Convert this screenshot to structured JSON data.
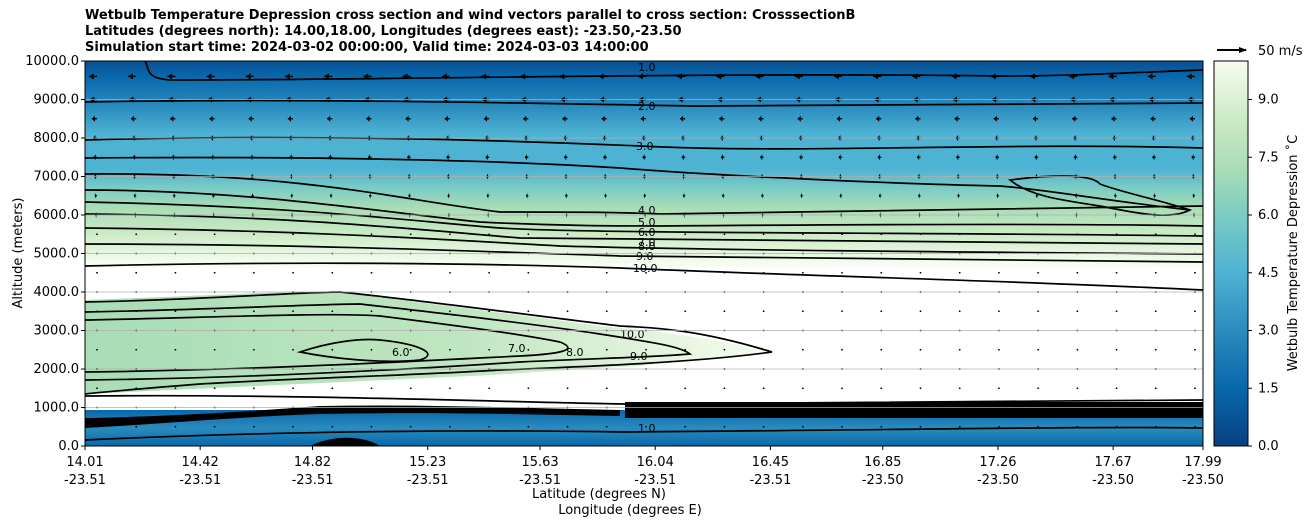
{
  "title": {
    "line1": "Wetbulb Temperature Depression cross section and wind vectors parallel to cross section: CrosssectionB",
    "line2": "Latitudes (degrees north): 14.00,18.00, Longitudes (degrees east): -23.50,-23.50",
    "line3": "Simulation start time: 2024-03-02 00:00:00, Valid time: 2024-03-03 14:00:00"
  },
  "chart_data": {
    "type": "heatmap",
    "subtype": "cross-section filled contour with contour lines and wind vectors",
    "ylabel": "Altitude (meters)",
    "xlabel_lat": "Latitude (degrees N)",
    "xlabel_lon": "Longitude (degrees E)",
    "ylim": [
      0,
      10000
    ],
    "yticks": [
      "0.0",
      "1000.0",
      "2000.0",
      "3000.0",
      "4000.0",
      "5000.0",
      "6000.0",
      "7000.0",
      "8000.0",
      "9000.0",
      "10000.0"
    ],
    "xlim": [
      14.01,
      17.99
    ],
    "xticks": [
      {
        "lat": "14.01",
        "lon": "-23.51"
      },
      {
        "lat": "14.42",
        "lon": "-23.51"
      },
      {
        "lat": "14.82",
        "lon": "-23.51"
      },
      {
        "lat": "15.23",
        "lon": "-23.51"
      },
      {
        "lat": "15.63",
        "lon": "-23.51"
      },
      {
        "lat": "16.04",
        "lon": "-23.51"
      },
      {
        "lat": "16.45",
        "lon": "-23.51"
      },
      {
        "lat": "16.85",
        "lon": "-23.50"
      },
      {
        "lat": "17.26",
        "lon": "-23.50"
      },
      {
        "lat": "17.67",
        "lon": "-23.50"
      },
      {
        "lat": "17.99",
        "lon": "-23.50"
      }
    ],
    "grid": "horizontal",
    "colorbar": {
      "label": "Wetbulb Temperature Depression ˚C",
      "min": 0,
      "max": 10,
      "ticks": [
        "0.0",
        "1.5",
        "3.0",
        "4.5",
        "6.0",
        "7.5",
        "9.0"
      ],
      "colormap": "GnBu_r"
    },
    "quiver_key": {
      "label": "50 m/s",
      "speed": 50
    },
    "contour_levels": [
      1,
      2,
      3,
      4,
      5,
      6,
      7,
      8,
      9,
      10
    ],
    "contour_labels": [
      "1.0",
      "2.0",
      "3.0",
      "4.0",
      "5.0",
      "6.0",
      "7.0",
      "8.0",
      "9.0",
      "10.0"
    ],
    "field_layers": [
      {
        "altitude_range_m": [
          9500,
          10000
        ],
        "value_c": 1.0
      },
      {
        "altitude_range_m": [
          8500,
          9500
        ],
        "value_c": 2.0
      },
      {
        "altitude_range_m": [
          6300,
          8500
        ],
        "value_c": 3.0
      },
      {
        "altitude_range_m": [
          5800,
          6300
        ],
        "value_c": 4.5
      },
      {
        "altitude_range_m": [
          4600,
          5800
        ],
        "value_c": 8.0
      },
      {
        "altitude_range_m": [
          3600,
          4600
        ],
        "value_c": 11.0
      },
      {
        "altitude_range_m": [
          1900,
          3600
        ],
        "value_c": 7.0,
        "note": "moist tongue, extends to ~16.5 N"
      },
      {
        "altitude_range_m": [
          1100,
          1900
        ],
        "value_c": 11.0
      },
      {
        "altitude_range_m": [
          0,
          1100
        ],
        "value_c": 1.0
      }
    ],
    "wind_rows_m": [
      9600,
      9000,
      8500,
      8000,
      7500,
      7000,
      6500,
      6000,
      5500,
      5000,
      4500,
      4000,
      3500,
      3000,
      2500,
      2000,
      1500,
      1000,
      500
    ],
    "wind_u_ms": [
      -14,
      -12,
      -9,
      -7,
      -6,
      -5,
      -4,
      -3,
      -2,
      -1,
      -1,
      -0.5,
      -0.5,
      -0.5,
      -0.5,
      -0.3,
      -0.3,
      -0.3,
      -0.3
    ],
    "colors": {
      "top": "#084081",
      "mid": "#4eb3d3",
      "light": "#a8ddb5",
      "white": "#f7fcf0"
    }
  }
}
